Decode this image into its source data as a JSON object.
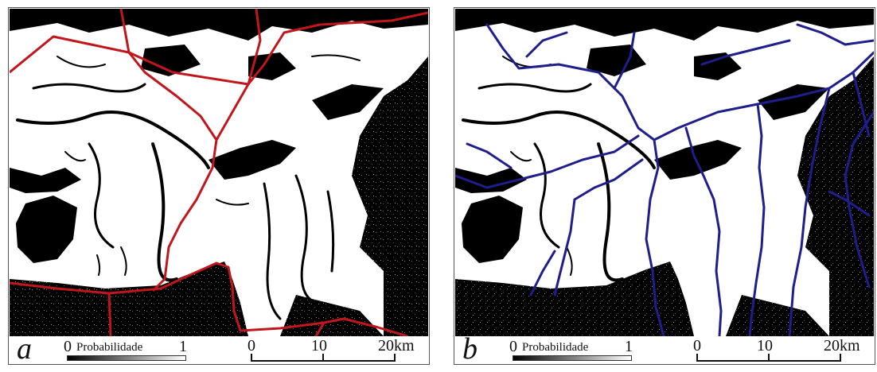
{
  "panels": [
    {
      "letter": "a",
      "legend": {
        "min": "0",
        "title": "Probabilidade",
        "max": "1"
      },
      "scale": {
        "ticks": [
          "0",
          "10",
          "20km"
        ]
      },
      "overlay": {
        "type": "roads",
        "color": "#c0161c"
      }
    },
    {
      "letter": "b",
      "legend": {
        "min": "0",
        "title": "Probabilidade",
        "max": "1"
      },
      "scale": {
        "ticks": [
          "0",
          "10",
          "20km"
        ]
      },
      "overlay": {
        "type": "rivers",
        "color": "#1e1e8c"
      }
    }
  ],
  "colors": {
    "low_probability": "#000000",
    "high_probability": "#ffffff"
  }
}
